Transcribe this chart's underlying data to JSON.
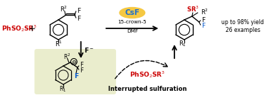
{
  "bg_color": "#ffffff",
  "arrow_color": "#000000",
  "red_color": "#cc0000",
  "blue_color": "#0055cc",
  "csf_bg": "#f5c842",
  "csf_text": "#1a6ecf",
  "highlight_bg": "#e8ecc8",
  "reagent_top": "CsF",
  "reagent_line1": "15-crown-5",
  "reagent_line2": "DMF",
  "yield_text": "up to 98% yield",
  "examples_text": "26 examples",
  "interrupted_label": "Interrupted sulfuration",
  "f_minus": "F⁻"
}
